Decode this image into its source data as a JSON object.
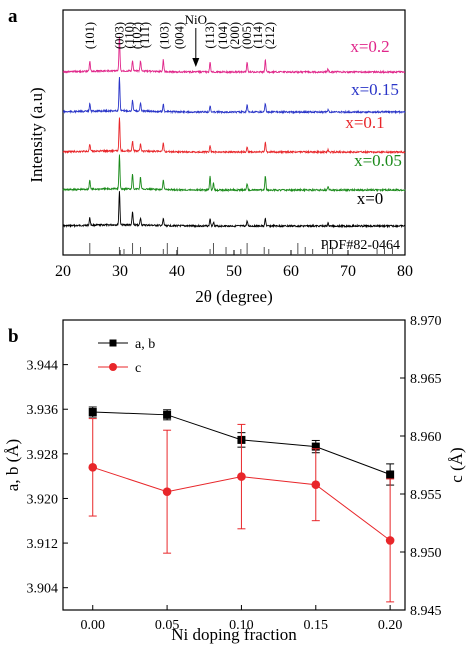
{
  "chart_data": [
    {
      "panel_label": "a",
      "type": "line",
      "xlabel": "2θ (degree)",
      "ylabel": "Intensity (a.u)",
      "xlim": [
        20,
        80
      ],
      "xticks": [
        20,
        30,
        40,
        50,
        60,
        70,
        80
      ],
      "reference_label": "PDF#82-0464",
      "reference_peaks": [
        24.7,
        29.9,
        30.7,
        32.2,
        33.6,
        37.6,
        38.3,
        40.1,
        45.8,
        46.4,
        48.6,
        51.2,
        52.3,
        55.3,
        56.1,
        61.2,
        62.5,
        63.8,
        66.4,
        67.3,
        75.1,
        76.4,
        77.8
      ],
      "peak_labels": [
        {
          "text": "(101)",
          "x": 24.7
        },
        {
          "text": "(003)",
          "x": 29.9
        },
        {
          "text": "(110)",
          "x": 31.7
        },
        {
          "text": "(102)",
          "x": 33.0
        },
        {
          "text": "(111)",
          "x": 34.4
        },
        {
          "text": "(103)",
          "x": 37.8
        },
        {
          "text": "(004)",
          "x": 40.4
        },
        {
          "text": "(113)",
          "x": 45.8
        },
        {
          "text": "(104)",
          "x": 48.1
        },
        {
          "text": "(200)",
          "x": 50.2
        },
        {
          "text": "(005)",
          "x": 52.3
        },
        {
          "text": "(114)",
          "x": 54.2
        },
        {
          "text": "(212)",
          "x": 56.3
        }
      ],
      "impurity_label": {
        "text": "NiO",
        "x": 43.3
      },
      "series": [
        {
          "name": "x=0",
          "color": "#000000",
          "offset": 0,
          "peaks": [
            [
              24.7,
              0.22
            ],
            [
              29.9,
              1.0
            ],
            [
              32.2,
              0.38
            ],
            [
              33.6,
              0.2
            ],
            [
              37.6,
              0.2
            ],
            [
              45.8,
              0.22
            ],
            [
              46.4,
              0.12
            ],
            [
              52.3,
              0.14
            ],
            [
              55.5,
              0.22
            ],
            [
              66.5,
              0.08
            ]
          ]
        },
        {
          "name": "x=0.05",
          "color": "#1a8a1a",
          "offset": 1,
          "peaks": [
            [
              24.7,
              0.28
            ],
            [
              29.9,
              1.0
            ],
            [
              32.2,
              0.45
            ],
            [
              33.6,
              0.35
            ],
            [
              37.6,
              0.3
            ],
            [
              45.8,
              0.42
            ],
            [
              46.4,
              0.2
            ],
            [
              52.3,
              0.2
            ],
            [
              55.5,
              0.42
            ],
            [
              66.5,
              0.1
            ]
          ]
        },
        {
          "name": "x=0.1",
          "color": "#e8262a",
          "offset": 2,
          "peaks": [
            [
              24.7,
              0.2
            ],
            [
              29.9,
              1.0
            ],
            [
              32.2,
              0.3
            ],
            [
              33.6,
              0.22
            ],
            [
              37.6,
              0.25
            ],
            [
              45.8,
              0.2
            ],
            [
              52.3,
              0.15
            ],
            [
              55.5,
              0.28
            ],
            [
              66.5,
              0.06
            ]
          ]
        },
        {
          "name": "x=0.15",
          "color": "#2a35c8",
          "offset": 3,
          "peaks": [
            [
              24.7,
              0.22
            ],
            [
              29.9,
              1.0
            ],
            [
              32.2,
              0.32
            ],
            [
              33.6,
              0.25
            ],
            [
              37.6,
              0.22
            ],
            [
              45.8,
              0.18
            ],
            [
              52.3,
              0.2
            ],
            [
              55.5,
              0.25
            ],
            [
              66.5,
              0.08
            ]
          ]
        },
        {
          "name": "x=0.2",
          "color": "#e0268a",
          "offset": 4,
          "peaks": [
            [
              24.7,
              0.3
            ],
            [
              29.9,
              1.0
            ],
            [
              32.2,
              0.3
            ],
            [
              33.6,
              0.3
            ],
            [
              37.6,
              0.35
            ],
            [
              45.8,
              0.3
            ],
            [
              52.3,
              0.3
            ],
            [
              55.5,
              0.35
            ],
            [
              66.5,
              0.1
            ]
          ]
        }
      ]
    },
    {
      "panel_label": "b",
      "type": "line",
      "xlabel": "Ni doping fraction",
      "ylabel_left": "a, b (Å)",
      "ylabel_right": "c (Å)",
      "xlim": [
        -0.02,
        0.21
      ],
      "xticks": [
        0.0,
        0.05,
        0.1,
        0.15,
        0.2
      ],
      "xtick_labels": [
        "0.00",
        "0.05",
        "0.10",
        "0.15",
        "0.20"
      ],
      "ylim_left": [
        3.9,
        3.952
      ],
      "yticks_left": [
        3.904,
        3.912,
        3.92,
        3.928,
        3.936,
        3.944
      ],
      "ytick_labels_left": [
        "3.904",
        "3.912",
        "3.920",
        "3.928",
        "3.936",
        "3.944"
      ],
      "ylim_right": [
        8.945,
        8.97
      ],
      "yticks_right": [
        8.945,
        8.95,
        8.955,
        8.96,
        8.965,
        8.97
      ],
      "ytick_labels_right": [
        "8.945",
        "8.950",
        "8.955",
        "8.960",
        "8.965",
        "8.970"
      ],
      "legend_position": "top-left",
      "series": [
        {
          "name": "a, b",
          "axis": "left",
          "color": "#000000",
          "marker": "square",
          "x": [
            0.0,
            0.05,
            0.1,
            0.15,
            0.2
          ],
          "y": [
            3.9355,
            3.935,
            3.9305,
            3.9293,
            3.9243
          ],
          "err": [
            0.0009,
            0.0009,
            0.0013,
            0.0011,
            0.0019
          ]
        },
        {
          "name": "c",
          "axis": "right",
          "color": "#e8262a",
          "marker": "circle",
          "x": [
            0.0,
            0.05,
            0.1,
            0.15,
            0.2
          ],
          "y": [
            8.9573,
            8.9552,
            8.9565,
            8.9558,
            8.951
          ],
          "err": [
            0.0042,
            0.0053,
            0.0045,
            0.0031,
            0.0053
          ]
        }
      ]
    }
  ]
}
